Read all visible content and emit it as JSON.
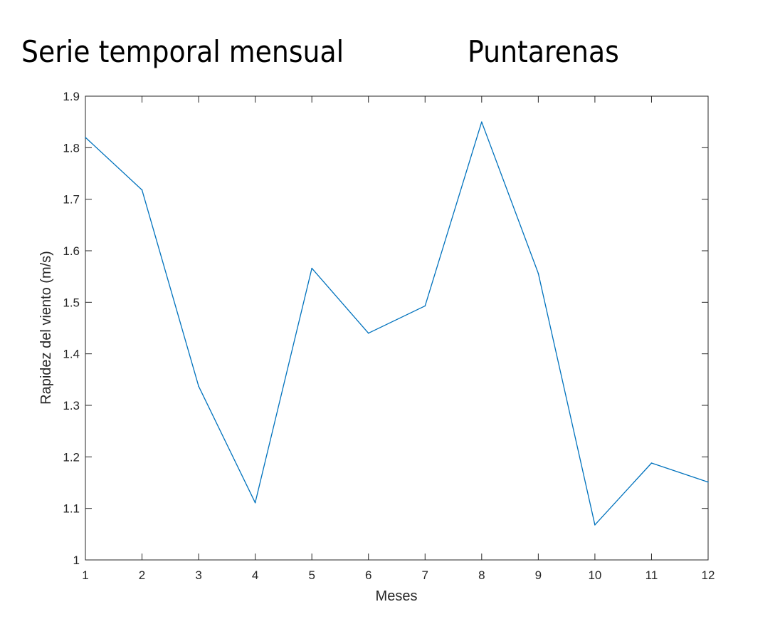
{
  "titles": {
    "left": "Serie temporal mensual",
    "right": "Puntarenas"
  },
  "chart_data": {
    "type": "line",
    "xlabel": "Meses",
    "ylabel": "Rapidez del viento (m/s)",
    "xlim": [
      1,
      12
    ],
    "ylim": [
      1,
      1.9
    ],
    "x_ticks": [
      "1",
      "2",
      "3",
      "4",
      "5",
      "6",
      "7",
      "8",
      "9",
      "10",
      "11",
      "12"
    ],
    "y_ticks": [
      "1",
      "1.1",
      "1.2",
      "1.3",
      "1.4",
      "1.5",
      "1.6",
      "1.7",
      "1.8",
      "1.9"
    ],
    "grid": false,
    "series": [
      {
        "color": "#0072BD",
        "x": [
          1,
          2,
          3,
          4,
          5,
          6,
          7,
          8,
          9,
          10,
          11,
          12
        ],
        "y": [
          1.82,
          1.718,
          1.337,
          1.111,
          1.566,
          1.44,
          1.493,
          1.85,
          1.556,
          1.068,
          1.188,
          1.151
        ]
      }
    ]
  }
}
